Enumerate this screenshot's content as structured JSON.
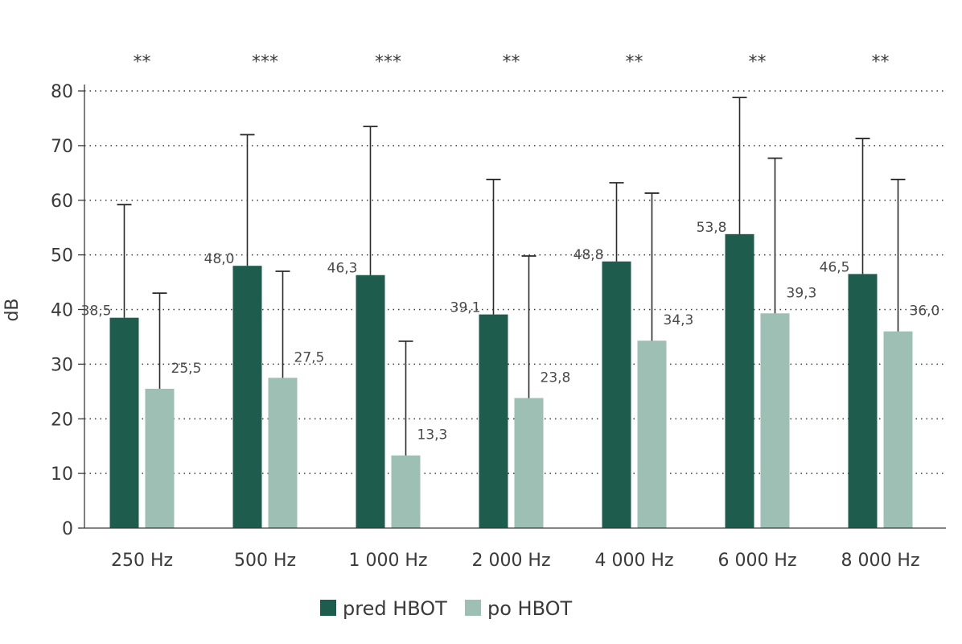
{
  "chart_data": {
    "type": "bar",
    "title": "",
    "xlabel": "",
    "ylabel": "dB",
    "ylim": [
      0,
      80
    ],
    "yticks": [
      0,
      10,
      20,
      30,
      40,
      50,
      60,
      70,
      80
    ],
    "grid": "horizontal-dotted",
    "legend_position": "bottom",
    "categories": [
      "250 Hz",
      "500 Hz",
      "1 000 Hz",
      "2 000 Hz",
      "4 000 Hz",
      "6 000 Hz",
      "8 000 Hz"
    ],
    "significance": [
      "**",
      "***",
      "***",
      "**",
      "**",
      "**",
      "**"
    ],
    "series": [
      {
        "name": "pred HBOT",
        "color": "#1e5c4e",
        "values": [
          38.5,
          48.0,
          46.3,
          39.1,
          48.8,
          53.8,
          46.5
        ],
        "labels": [
          "38,5",
          "48,0",
          "46,3",
          "39,1",
          "48,8",
          "53,8",
          "46,5"
        ],
        "error_upper": [
          59.2,
          72.0,
          73.5,
          63.8,
          63.2,
          78.8,
          71.3
        ]
      },
      {
        "name": "po HBOT",
        "color": "#9dbfb4",
        "values": [
          25.5,
          27.5,
          13.3,
          23.8,
          34.3,
          39.3,
          36.0
        ],
        "labels": [
          "25,5",
          "27,5",
          "13,3",
          "23,8",
          "34,3",
          "39,3",
          "36,0"
        ],
        "error_upper": [
          43.0,
          47.0,
          34.2,
          49.8,
          61.3,
          67.7,
          63.8
        ]
      }
    ]
  }
}
